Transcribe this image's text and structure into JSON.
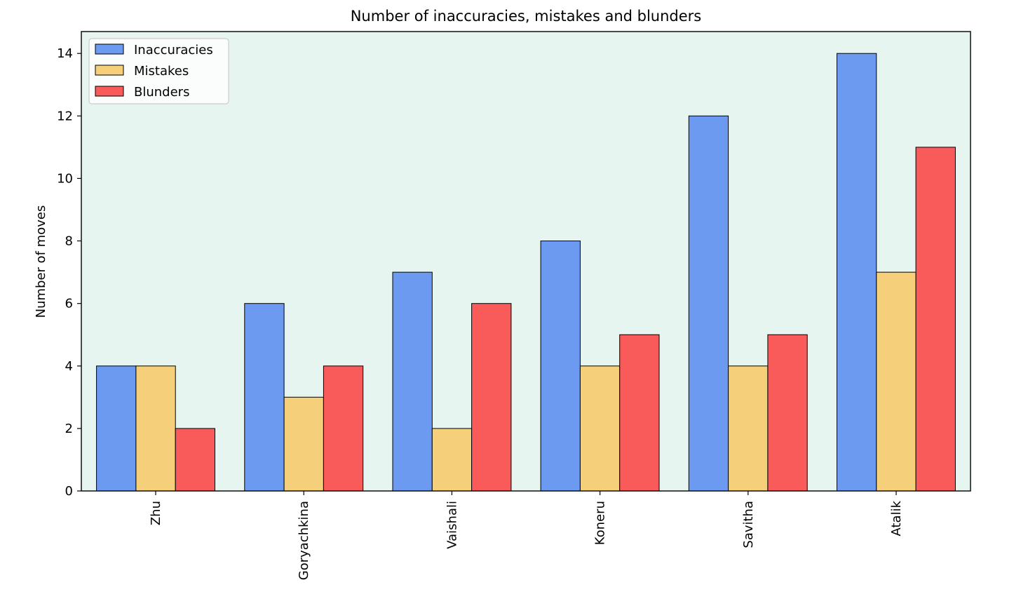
{
  "chart_data": {
    "type": "bar",
    "title": "Number of inaccuracies, mistakes and blunders",
    "xlabel": "",
    "ylabel": "Number of moves",
    "categories": [
      "Zhu",
      "Goryachkina",
      "Vaishali",
      "Koneru",
      "Savitha",
      "Atalik"
    ],
    "series": [
      {
        "name": "Inaccuracies",
        "color": "#6b9af0",
        "values": [
          4,
          6,
          7,
          8,
          12,
          14
        ]
      },
      {
        "name": "Mistakes",
        "color": "#f5cf79",
        "values": [
          4,
          3,
          2,
          4,
          4,
          7
        ]
      },
      {
        "name": "Blunders",
        "color": "#f95b5b",
        "values": [
          2,
          4,
          6,
          5,
          5,
          11
        ]
      }
    ],
    "ylim": [
      0,
      14.7
    ],
    "yticks": [
      0,
      2,
      4,
      6,
      8,
      10,
      12,
      14
    ],
    "legend_position": "top-left",
    "grid": false,
    "plot_background": "#e6f5ef",
    "xtick_rotation": "vertical"
  }
}
